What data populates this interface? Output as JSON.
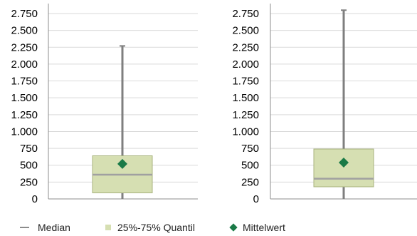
{
  "chart_data": [
    {
      "type": "box",
      "ylim": [
        0,
        2750
      ],
      "yticks": [
        0,
        250,
        500,
        750,
        1000,
        1250,
        1500,
        1750,
        2000,
        2250,
        2500,
        2750
      ],
      "ytick_labels": [
        "0",
        "250",
        "500",
        "750",
        "1.000",
        "1.250",
        "1.500",
        "1.750",
        "2.000",
        "2.250",
        "2.500",
        "2.750"
      ],
      "grid": true,
      "box": {
        "min": 0,
        "q1": 90,
        "median": 360,
        "q3": 640,
        "max": 2270,
        "mean": 520
      }
    },
    {
      "type": "box",
      "ylim": [
        0,
        2750
      ],
      "yticks": [
        0,
        250,
        500,
        750,
        1000,
        1250,
        1500,
        1750,
        2000,
        2250,
        2500,
        2750
      ],
      "ytick_labels": [
        "0",
        "250",
        "500",
        "750",
        "1.000",
        "1.250",
        "1.500",
        "1.750",
        "2.000",
        "2.250",
        "2.500",
        "2.750"
      ],
      "grid": true,
      "box": {
        "min": 0,
        "q1": 180,
        "median": 300,
        "q3": 740,
        "max": 2800,
        "mean": 540
      }
    }
  ],
  "legend": {
    "position": "bottom",
    "items": [
      {
        "label": "Median",
        "symbol": "line",
        "color": "#8c8c8c"
      },
      {
        "label": "25%-75% Quantil",
        "symbol": "square",
        "color": "#d6dfb2"
      },
      {
        "label": "Mittelwert",
        "symbol": "diamond",
        "color": "#1a7a47"
      }
    ]
  },
  "colors": {
    "box_fill": "#d6dfb2",
    "box_stroke": "#a8b37e",
    "whisker": "#7f7f7f",
    "median_line": "#a0a0a0",
    "mean_marker": "#1a7a47",
    "grid": "#d9d9d9",
    "axis": "#8c8c8c",
    "tick_text": "#000000"
  }
}
